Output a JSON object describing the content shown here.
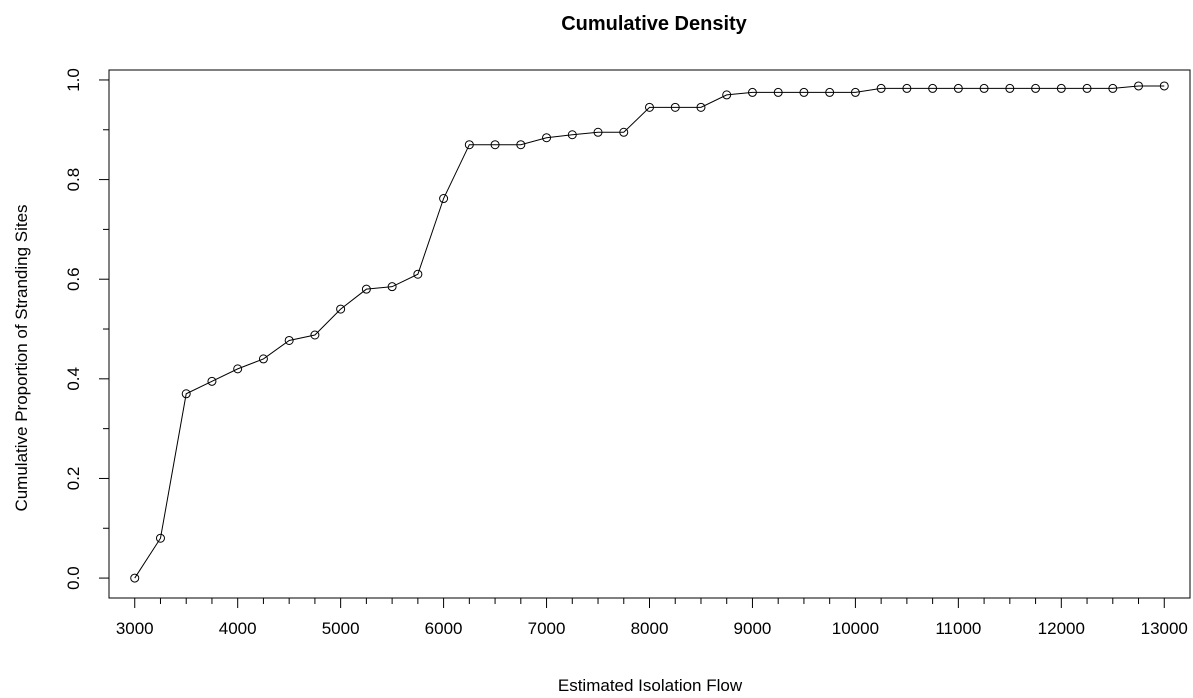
{
  "chart_data": {
    "type": "line",
    "title": "Cumulative Density",
    "xlabel": "Estimated Isolation Flow",
    "ylabel": "Cumulative Proportion of Stranding Sites",
    "xlim": [
      2750,
      13250
    ],
    "ylim": [
      -0.04,
      1.02
    ],
    "x_ticks": [
      3000,
      4000,
      5000,
      6000,
      7000,
      8000,
      9000,
      10000,
      11000,
      12000,
      13000
    ],
    "x_tick_labels": [
      "3000",
      "4000",
      "5000",
      "6000",
      "7000",
      "8000",
      "9000",
      "10000",
      "11000",
      "12000",
      "13000"
    ],
    "x_minor_ticks": [
      3250,
      3500,
      3750,
      4250,
      4500,
      4750,
      5250,
      5500,
      5750,
      6250,
      6500,
      6750,
      7250,
      7500,
      7750,
      8250,
      8500,
      8750,
      9250,
      9500,
      9750,
      10250,
      10500,
      10750,
      11250,
      11500,
      11750,
      12250,
      12500,
      12750
    ],
    "y_ticks": [
      0.0,
      0.2,
      0.4,
      0.6,
      0.8,
      1.0
    ],
    "y_tick_labels": [
      "0.0",
      "0.2",
      "0.4",
      "0.6",
      "0.8",
      "1.0"
    ],
    "y_minor_ticks": [
      0.1,
      0.3,
      0.5,
      0.7,
      0.9
    ],
    "grid": false,
    "marker": "open-circle",
    "series": [
      {
        "x": [
          3000,
          3250,
          3500,
          3750,
          4000,
          4250,
          4500,
          4750,
          5000,
          5250,
          5500,
          5750,
          6000,
          6250,
          6500,
          6750,
          7000,
          7250,
          7500,
          7750,
          8000,
          8250,
          8500,
          8750,
          9000,
          9250,
          9500,
          9750,
          10000,
          10250,
          10500,
          10750,
          11000,
          11250,
          11500,
          11750,
          12000,
          12250,
          12500,
          12750,
          13000
        ],
        "values": [
          0.0,
          0.08,
          0.37,
          0.395,
          0.42,
          0.44,
          0.477,
          0.488,
          0.54,
          0.58,
          0.585,
          0.61,
          0.762,
          0.87,
          0.87,
          0.87,
          0.884,
          0.89,
          0.895,
          0.895,
          0.945,
          0.945,
          0.945,
          0.97,
          0.975,
          0.975,
          0.975,
          0.975,
          0.975,
          0.983,
          0.983,
          0.983,
          0.983,
          0.983,
          0.983,
          0.983,
          0.983,
          0.983,
          0.983,
          0.988,
          0.988
        ]
      }
    ]
  }
}
